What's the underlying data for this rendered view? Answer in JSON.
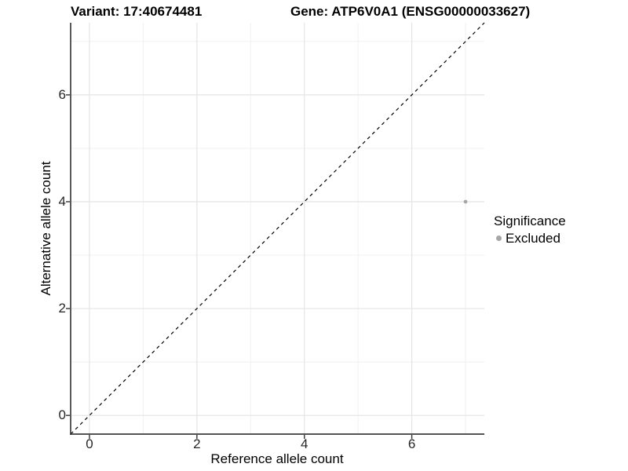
{
  "chart_data": {
    "type": "scatter",
    "title_left": "Variant: 17:40674481",
    "title_right": "Gene: ATP6V0A1 (ENSG00000033627)",
    "xlabel": "Reference allele count",
    "ylabel": "Alternative allele count",
    "xlim": [
      -0.35,
      7.35
    ],
    "ylim": [
      -0.35,
      7.35
    ],
    "x_major_ticks": [
      0,
      2,
      4,
      6
    ],
    "y_major_ticks": [
      0,
      2,
      4,
      6
    ],
    "x_minor_breaks": [
      1,
      3,
      5,
      7
    ],
    "y_minor_breaks": [
      1,
      3,
      5,
      7
    ],
    "grid": "major+minor",
    "reference_line": {
      "kind": "identity",
      "equation": "y = x",
      "style": "dashed",
      "color": "#000000"
    },
    "series": [
      {
        "name": "Excluded",
        "color": "#a6a6a6",
        "points": [
          [
            7,
            4
          ]
        ],
        "point_radius": 2.4
      }
    ],
    "legend": {
      "position": "right",
      "title": "Significance",
      "items": [
        {
          "label": "Excluded",
          "color": "#a6a6a6",
          "marker": "circle"
        }
      ]
    }
  },
  "colors": {
    "background": "#ffffff",
    "grid_major": "#e4e4e4",
    "grid_minor": "#efefef",
    "axis_line": "#3c3c3c",
    "tick_mark": "#333333",
    "text": "#000000",
    "tick_text": "#262626"
  }
}
